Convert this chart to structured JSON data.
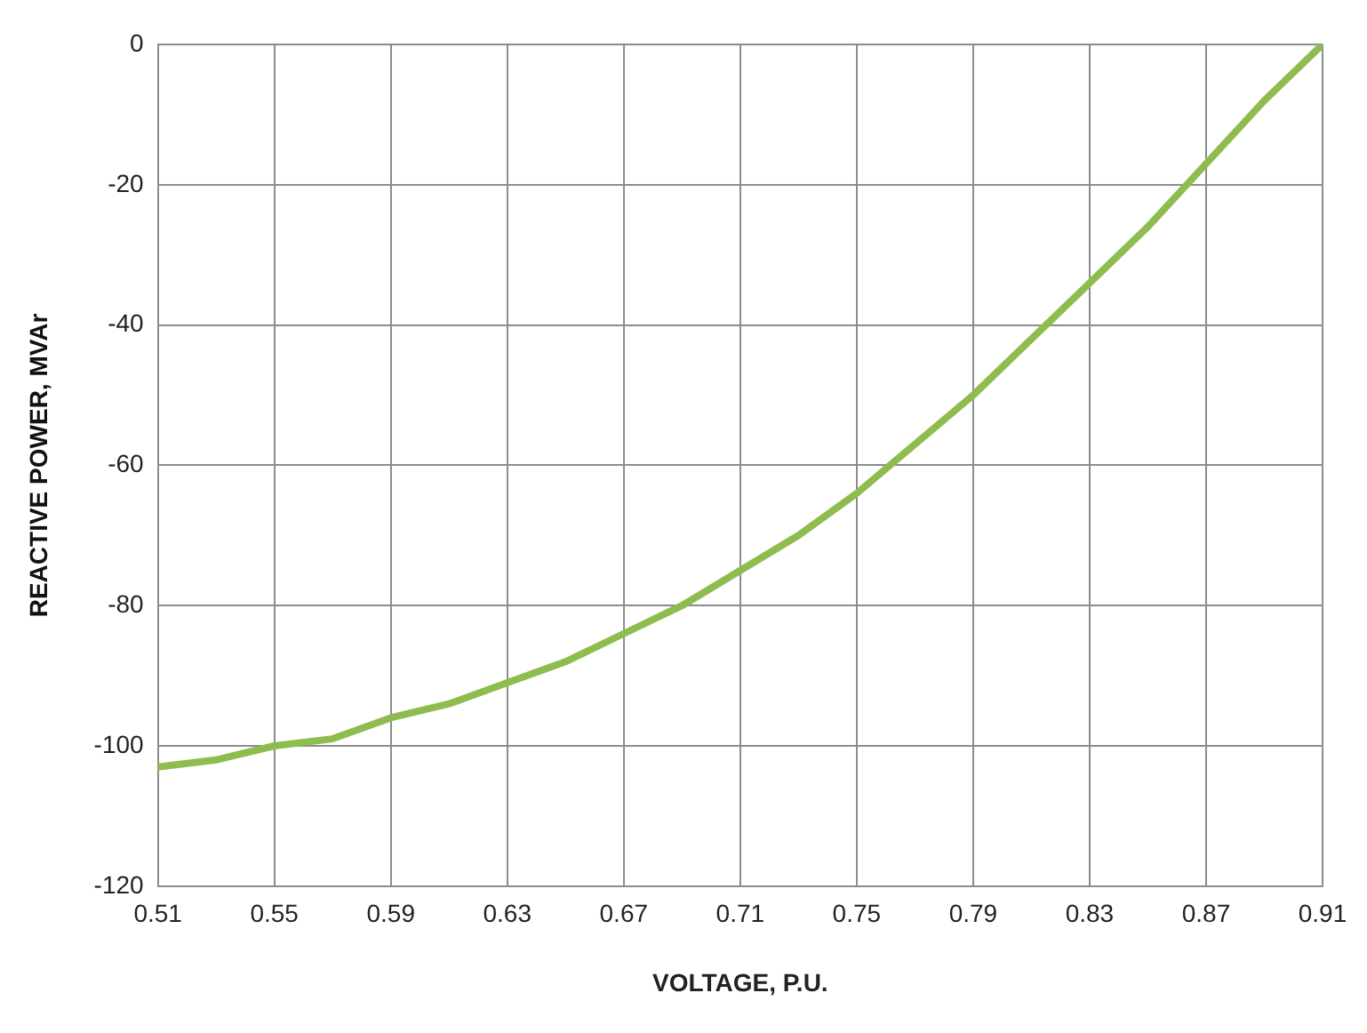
{
  "chart_data": {
    "type": "line",
    "xlabel": "VOLTAGE, P.U.",
    "ylabel": "REACTIVE POWER, MVAr",
    "x": [
      0.51,
      0.53,
      0.55,
      0.57,
      0.59,
      0.61,
      0.63,
      0.65,
      0.67,
      0.69,
      0.71,
      0.73,
      0.75,
      0.77,
      0.79,
      0.81,
      0.83,
      0.85,
      0.87,
      0.89,
      0.91
    ],
    "series": [
      {
        "color": "#8fbc4f",
        "values": [
          -103,
          -102,
          -100,
          -99,
          -96,
          -94,
          -91,
          -88,
          -84,
          -80,
          -75,
          -70,
          -64,
          -57,
          -50,
          -42,
          -34,
          -26,
          -17,
          -8,
          0
        ]
      }
    ],
    "xlim": [
      0.51,
      0.91
    ],
    "xticks": [
      0.51,
      0.55,
      0.59,
      0.63,
      0.67,
      0.71,
      0.75,
      0.79,
      0.83,
      0.87,
      0.91
    ],
    "ylim": [
      -120,
      0
    ],
    "yticks": [
      -120,
      -100,
      -80,
      -60,
      -40,
      -20,
      0
    ],
    "grid": true,
    "legend": false,
    "marker": "none",
    "line_style": "solid"
  }
}
